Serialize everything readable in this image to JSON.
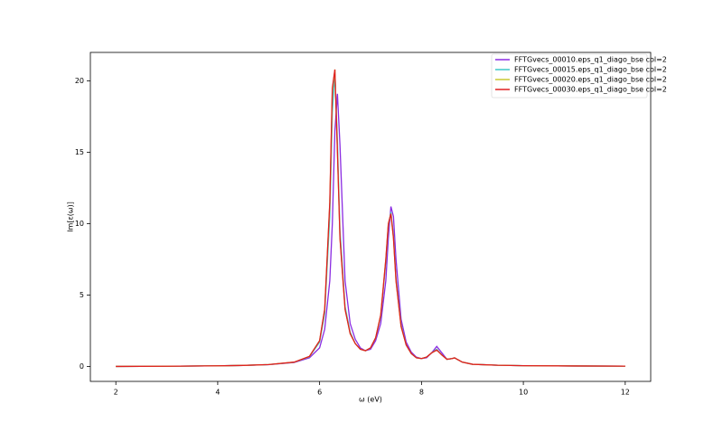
{
  "chart_data": {
    "type": "line",
    "xlabel": "ω (eV)",
    "ylabel": "Im[ε(ω)]",
    "x": [
      2,
      3,
      4,
      4.5,
      5,
      5.5,
      5.8,
      6.0,
      6.1,
      6.2,
      6.25,
      6.3,
      6.35,
      6.4,
      6.5,
      6.6,
      6.7,
      6.8,
      6.9,
      7.0,
      7.1,
      7.2,
      7.3,
      7.35,
      7.4,
      7.45,
      7.5,
      7.6,
      7.7,
      7.8,
      7.9,
      8.0,
      8.1,
      8.2,
      8.3,
      8.4,
      8.5,
      8.6,
      8.65,
      8.7,
      8.8,
      9,
      9.5,
      10,
      11,
      12
    ],
    "series": [
      {
        "name": "FFTGvecs_00010.eps_q1_diago_bse col=2",
        "color": "#8a2be2",
        "values": [
          0.0,
          0.01,
          0.04,
          0.07,
          0.12,
          0.27,
          0.6,
          1.3,
          2.6,
          6.0,
          10.0,
          16.5,
          19.1,
          15.5,
          6.0,
          3.0,
          1.9,
          1.3,
          1.1,
          1.2,
          1.8,
          3.0,
          6.0,
          9.0,
          11.2,
          10.5,
          7.5,
          3.3,
          1.7,
          1.0,
          0.65,
          0.55,
          0.6,
          0.95,
          1.4,
          0.95,
          0.5,
          0.55,
          0.6,
          0.5,
          0.3,
          0.15,
          0.08,
          0.05,
          0.03,
          0.02
        ]
      },
      {
        "name": "FFTGvecs_00015.eps_q1_diago_bse col=2",
        "color": "#3cc8c8",
        "values": [
          0.0,
          0.01,
          0.04,
          0.07,
          0.13,
          0.29,
          0.68,
          1.7,
          3.7,
          10.5,
          17.8,
          20.5,
          15.8,
          9.5,
          4.2,
          2.4,
          1.6,
          1.2,
          1.1,
          1.3,
          2.0,
          3.5,
          7.3,
          9.9,
          10.8,
          9.2,
          6.2,
          2.9,
          1.5,
          0.9,
          0.6,
          0.55,
          0.65,
          0.95,
          1.2,
          0.8,
          0.5,
          0.55,
          0.6,
          0.5,
          0.3,
          0.15,
          0.08,
          0.05,
          0.03,
          0.02
        ]
      },
      {
        "name": "FFTGvecs_00020.eps_q1_diago_bse col=2",
        "color": "#c8c832",
        "values": [
          0.0,
          0.01,
          0.04,
          0.07,
          0.13,
          0.3,
          0.7,
          1.8,
          4.0,
          11.4,
          19.3,
          20.8,
          15.1,
          9.0,
          4.0,
          2.3,
          1.6,
          1.2,
          1.1,
          1.3,
          2.0,
          3.6,
          7.5,
          10.0,
          10.7,
          9.0,
          6.0,
          2.8,
          1.5,
          0.9,
          0.6,
          0.55,
          0.65,
          0.95,
          1.15,
          0.8,
          0.5,
          0.55,
          0.6,
          0.5,
          0.3,
          0.15,
          0.08,
          0.05,
          0.03,
          0.02
        ]
      },
      {
        "name": "FFTGvecs_00030.eps_q1_diago_bse col=2",
        "color": "#e02020",
        "values": [
          0.0,
          0.01,
          0.04,
          0.07,
          0.13,
          0.3,
          0.7,
          1.8,
          4.0,
          11.5,
          19.5,
          20.8,
          15.0,
          9.0,
          4.0,
          2.3,
          1.6,
          1.2,
          1.1,
          1.3,
          2.0,
          3.6,
          7.5,
          10.0,
          10.7,
          9.0,
          6.0,
          2.8,
          1.5,
          0.9,
          0.6,
          0.55,
          0.65,
          0.95,
          1.15,
          0.8,
          0.5,
          0.55,
          0.6,
          0.5,
          0.3,
          0.15,
          0.08,
          0.05,
          0.03,
          0.02
        ]
      }
    ],
    "xlim": [
      1.5,
      12.5
    ],
    "ylim": [
      -1.05,
      22
    ],
    "xticks": [
      2,
      4,
      6,
      8,
      10,
      12
    ],
    "yticks": [
      0,
      5,
      10,
      15,
      20
    ],
    "legend": "upper right"
  }
}
